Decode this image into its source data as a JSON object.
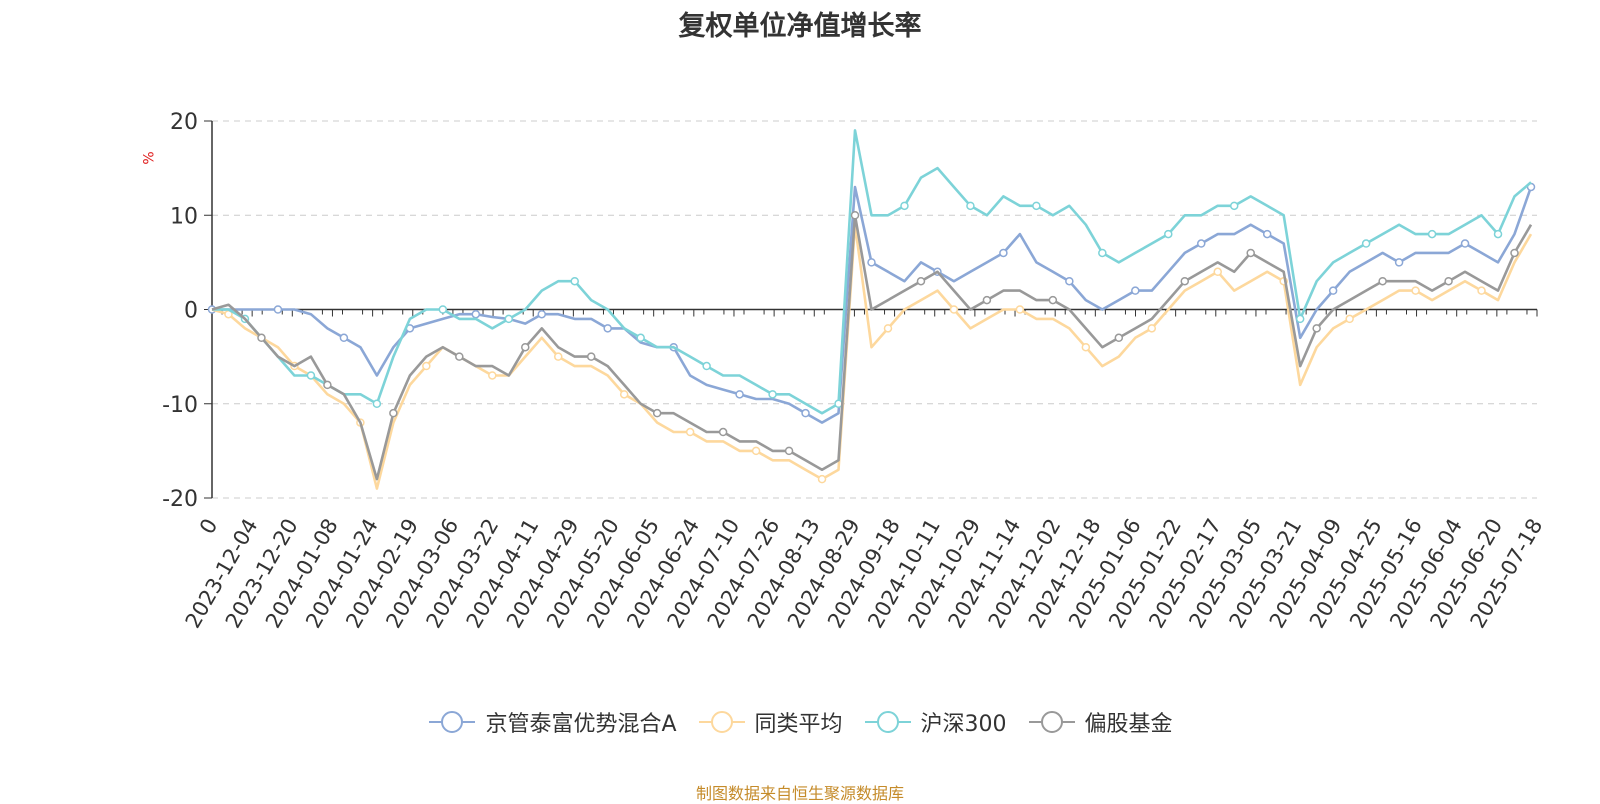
{
  "chart_data": {
    "type": "line",
    "title": "复权单位净值增长率",
    "ylabel": "%",
    "ylim": [
      -20,
      20
    ],
    "yticks": [
      20,
      10,
      0,
      -10,
      -20
    ],
    "grid": true,
    "legend_position": "bottom",
    "x_tick_labels": [
      "0",
      "2023-12-04",
      "2023-12-20",
      "2024-01-08",
      "2024-01-24",
      "2024-02-19",
      "2024-03-06",
      "2024-03-22",
      "2024-04-11",
      "2024-04-29",
      "2024-05-20",
      "2024-06-05",
      "2024-06-24",
      "2024-07-10",
      "2024-07-26",
      "2024-08-13",
      "2024-08-29",
      "2024-09-18",
      "2024-10-11",
      "2024-10-29",
      "2024-11-14",
      "2024-12-02",
      "2024-12-18",
      "2025-01-06",
      "2025-01-22",
      "2025-02-17",
      "2025-03-05",
      "2025-03-21",
      "2025-04-09",
      "2025-04-25",
      "2025-05-16",
      "2025-06-04",
      "2025-06-20",
      "2025-07-18"
    ],
    "series": [
      {
        "name": "京管泰富优势混合A",
        "color": "#8ba7d6",
        "values": [
          0,
          0,
          0,
          0,
          0,
          0,
          -0.5,
          -2,
          -3,
          -4,
          -7,
          -4,
          -2,
          -1.5,
          -1,
          -0.5,
          -0.5,
          -0.8,
          -1,
          -1.5,
          -0.5,
          -0.5,
          -1,
          -1,
          -2,
          -2,
          -3.5,
          -4,
          -4,
          -7,
          -8,
          -8.5,
          -9,
          -9.5,
          -9.5,
          -10,
          -11,
          -12,
          -11,
          13,
          5,
          4,
          3,
          5,
          4,
          3,
          4,
          5,
          6,
          8,
          5,
          4,
          3,
          1,
          0,
          1,
          2,
          2,
          4,
          6,
          7,
          8,
          8,
          9,
          8,
          7,
          -3,
          0,
          2,
          4,
          5,
          6,
          5,
          6,
          6,
          6,
          7,
          6,
          5,
          8,
          13
        ]
      },
      {
        "name": "同类平均",
        "color": "#fdd89d",
        "values": [
          0,
          -0.5,
          -2,
          -3,
          -4,
          -6,
          -7,
          -9,
          -10,
          -12,
          -19,
          -12,
          -8,
          -6,
          -4,
          -5,
          -6,
          -7,
          -7,
          -5,
          -3,
          -5,
          -6,
          -6,
          -7,
          -9,
          -10,
          -12,
          -13,
          -13,
          -14,
          -14,
          -15,
          -15,
          -16,
          -16,
          -17,
          -18,
          -17,
          9,
          -4,
          -2,
          0,
          1,
          2,
          0,
          -2,
          -1,
          0,
          0,
          -1,
          -1,
          -2,
          -4,
          -6,
          -5,
          -3,
          -2,
          0,
          2,
          3,
          4,
          2,
          3,
          4,
          3,
          -8,
          -4,
          -2,
          -1,
          0,
          1,
          2,
          2,
          1,
          2,
          3,
          2,
          1,
          5,
          8
        ]
      },
      {
        "name": "沪深300",
        "color": "#7dd3d8",
        "values": [
          0,
          0,
          -1,
          -3,
          -5,
          -7,
          -7,
          -8,
          -9,
          -9,
          -10,
          -5,
          -1,
          0,
          0,
          -1,
          -1,
          -2,
          -1,
          0,
          2,
          3,
          3,
          1,
          0,
          -2,
          -3,
          -4,
          -4,
          -5,
          -6,
          -7,
          -7,
          -8,
          -9,
          -9,
          -10,
          -11,
          -10,
          19,
          10,
          10,
          11,
          14,
          15,
          13,
          11,
          10,
          12,
          11,
          11,
          10,
          11,
          9,
          6,
          5,
          6,
          7,
          8,
          10,
          10,
          11,
          11,
          12,
          11,
          10,
          -1,
          3,
          5,
          6,
          7,
          8,
          9,
          8,
          8,
          8,
          9,
          10,
          8,
          12,
          13.5
        ]
      },
      {
        "name": "偏股基金",
        "color": "#999999",
        "values": [
          0,
          0.5,
          -1,
          -3,
          -5,
          -6,
          -5,
          -8,
          -9,
          -12,
          -18,
          -11,
          -7,
          -5,
          -4,
          -5,
          -6,
          -6,
          -7,
          -4,
          -2,
          -4,
          -5,
          -5,
          -6,
          -8,
          -10,
          -11,
          -11,
          -12,
          -13,
          -13,
          -14,
          -14,
          -15,
          -15,
          -16,
          -17,
          -16,
          10,
          0,
          1,
          2,
          3,
          4,
          2,
          0,
          1,
          2,
          2,
          1,
          1,
          0,
          -2,
          -4,
          -3,
          -2,
          -1,
          1,
          3,
          4,
          5,
          4,
          6,
          5,
          4,
          -6,
          -2,
          0,
          1,
          2,
          3,
          3,
          3,
          2,
          3,
          4,
          3,
          2,
          6,
          9
        ]
      }
    ]
  },
  "source": "制图数据来自恒生聚源数据库"
}
